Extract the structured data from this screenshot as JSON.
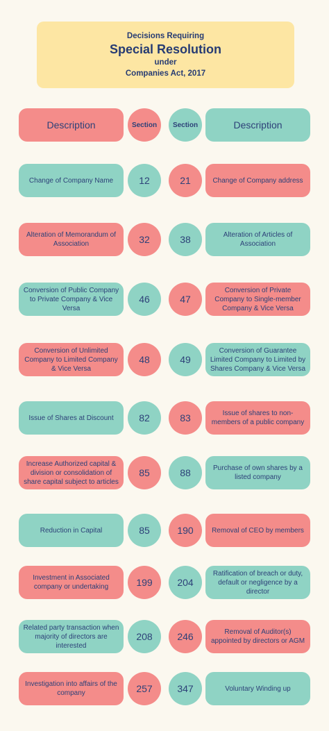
{
  "title": {
    "line1": "Decisions Requiring",
    "line2": "Special Resolution",
    "line3": "under",
    "line4": "Companies Act, 2017"
  },
  "header": {
    "left_description": "Description",
    "left_section": "Section",
    "right_section": "Section",
    "right_description": "Description"
  },
  "rows": [
    {
      "left_text": "Change of Company Name",
      "left_section": "12",
      "right_section": "21",
      "right_text": "Change of Company address"
    },
    {
      "left_text": "Alteration of Memorandum of Association",
      "left_section": "32",
      "right_section": "38",
      "right_text": "Alteration of Articles of Association"
    },
    {
      "left_text": "Conversion of Public Company to Private Company & Vice Versa",
      "left_section": "46",
      "right_section": "47",
      "right_text": "Conversion of Private Company to Single-member Company & Vice Versa"
    },
    {
      "left_text": "Conversion of Unlimited Company to Limited Company & Vice Versa",
      "left_section": "48",
      "right_section": "49",
      "right_text": "Conversion of Guarantee Limited Company to Limited by Shares Company & Vice Versa"
    },
    {
      "left_text": "Issue of Shares at Discount",
      "left_section": "82",
      "right_section": "83",
      "right_text": "Issue of shares to non-members of a public company"
    },
    {
      "left_text": "Increase Authorized capital & division or consolidation of share capital subject to articles",
      "left_section": "85",
      "right_section": "88",
      "right_text": "Purchase of own shares by a listed company"
    },
    {
      "left_text": "Reduction in Capital",
      "left_section": "85",
      "right_section": "190",
      "right_text": "Removal of CEO by members"
    },
    {
      "left_text": "Investment in Associated company or undertaking",
      "left_section": "199",
      "right_section": "204",
      "right_text": "Ratification of breach or duty, default or negligence by a director"
    },
    {
      "left_text": "Related party transaction when majority of directors are interested",
      "left_section": "208",
      "right_section": "246",
      "right_text": "Removal of Auditor(s) appointed by directors or AGM"
    },
    {
      "left_text": "Investigation into affairs of the company",
      "left_section": "257",
      "right_section": "347",
      "right_text": "Voluntary Winding up"
    }
  ],
  "colors": {
    "pink": "#f48c8a",
    "teal": "#8fd3c4",
    "title_bg": "#fde6a3",
    "background": "#fbf8ef",
    "text": "#2d4178"
  }
}
